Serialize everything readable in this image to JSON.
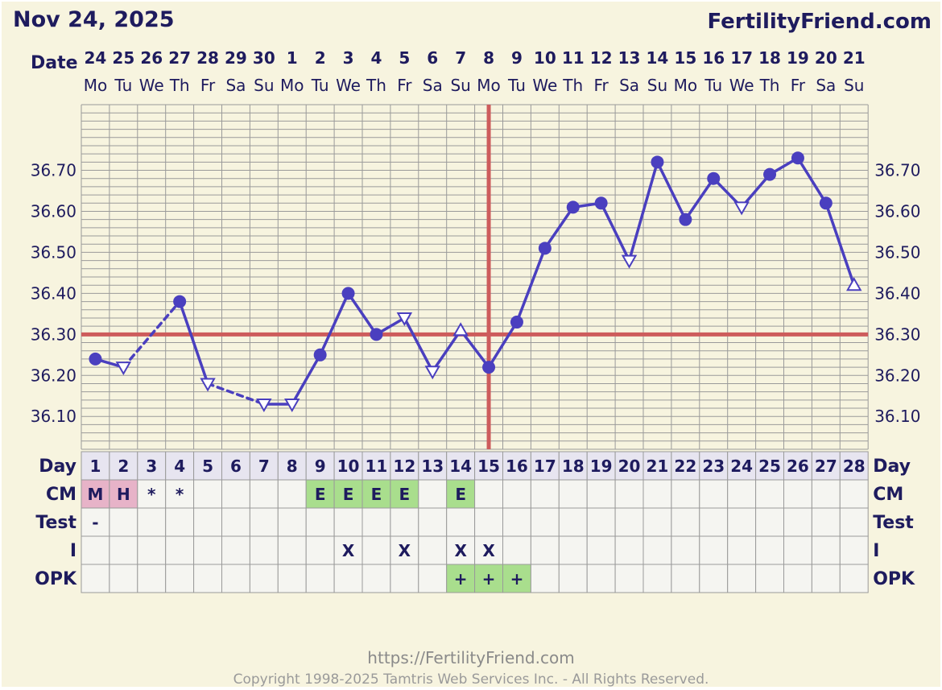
{
  "header": {
    "date": "Nov 24, 2025",
    "site": "FertilityFriend.com"
  },
  "labels": {
    "date": "Date",
    "day": "Day",
    "cm": "CM",
    "test": "Test",
    "intercourse": "I",
    "opk": "OPK"
  },
  "footer": {
    "url": "https://FertilityFriend.com",
    "copyright": "Copyright 1998-2025 Tamtris Web Services Inc. - All Rights Reserved."
  },
  "colors": {
    "background": "#f7f4df",
    "grid": "#9a9a9a",
    "temp_line": "#4a3fbf",
    "coverline": "#cd5c5c",
    "menses_cell": "#e7b3c8",
    "fertile_cell": "#a9de8d",
    "day_row": "#e7e5f0",
    "table_cell": "#f5f5f1",
    "text": "#1e1b5e"
  },
  "chart_data": {
    "type": "line",
    "title": "",
    "x_axis": "cycle day",
    "dates": [
      "24",
      "25",
      "26",
      "27",
      "28",
      "29",
      "30",
      "1",
      "2",
      "3",
      "4",
      "5",
      "6",
      "7",
      "8",
      "9",
      "10",
      "11",
      "12",
      "13",
      "14",
      "15",
      "16",
      "17",
      "18",
      "19",
      "20",
      "21"
    ],
    "weekdays": [
      "Mo",
      "Tu",
      "We",
      "Th",
      "Fr",
      "Sa",
      "Su",
      "Mo",
      "Tu",
      "We",
      "Th",
      "Fr",
      "Sa",
      "Su",
      "Mo",
      "Tu",
      "We",
      "Th",
      "Fr",
      "Sa",
      "Su",
      "Mo",
      "Tu",
      "We",
      "Th",
      "Fr",
      "Sa",
      "Su"
    ],
    "cycle_days": [
      1,
      2,
      3,
      4,
      5,
      6,
      7,
      8,
      9,
      10,
      11,
      12,
      13,
      14,
      15,
      16,
      17,
      18,
      19,
      20,
      21,
      22,
      23,
      24,
      25,
      26,
      27,
      28
    ],
    "y_ticks": [
      "36.10",
      "36.20",
      "36.30",
      "36.40",
      "36.50",
      "36.60",
      "36.70"
    ],
    "ylim": [
      36.02,
      36.86
    ],
    "temps": [
      36.24,
      36.22,
      null,
      36.38,
      36.18,
      null,
      36.13,
      36.13,
      36.25,
      36.4,
      36.3,
      36.34,
      36.21,
      36.31,
      36.22,
      36.33,
      36.51,
      36.61,
      36.62,
      36.48,
      36.72,
      36.58,
      36.68,
      36.61,
      36.69,
      36.73,
      36.62,
      36.42
    ],
    "markers": [
      "circle",
      "tri-down",
      "none",
      "circle",
      "tri-down",
      "none",
      "tri-down",
      "tri-down",
      "circle",
      "circle",
      "circle",
      "tri-down",
      "tri-down",
      "tri-up",
      "circle",
      "circle",
      "circle",
      "circle",
      "circle",
      "tri-down",
      "circle",
      "circle",
      "circle",
      "tri-down",
      "circle",
      "circle",
      "circle",
      "tri-up"
    ],
    "dashed_segments": [
      [
        2,
        4
      ],
      [
        5,
        7
      ]
    ],
    "coverline": 36.3,
    "ovulation_day": 15,
    "cm": [
      "M",
      "H",
      "*",
      "*",
      "",
      "",
      "",
      "",
      "E",
      "E",
      "E",
      "E",
      "",
      "E",
      "",
      "",
      "",
      "",
      "",
      "",
      "",
      "",
      "",
      "",
      "",
      "",
      "",
      ""
    ],
    "cm_kinds": [
      "menses",
      "menses",
      "dot",
      "dot",
      "",
      "",
      "",
      "",
      "fertile",
      "fertile",
      "fertile",
      "fertile",
      "",
      "fertile",
      "",
      "",
      "",
      "",
      "",
      "",
      "",
      "",
      "",
      "",
      "",
      "",
      "",
      ""
    ],
    "test": [
      "-",
      "",
      "",
      "",
      "",
      "",
      "",
      "",
      "",
      "",
      "",
      "",
      "",
      "",
      "",
      "",
      "",
      "",
      "",
      "",
      "",
      "",
      "",
      "",
      "",
      "",
      "",
      ""
    ],
    "intercourse": [
      "",
      "",
      "",
      "",
      "",
      "",
      "",
      "",
      "",
      "X",
      "",
      "X",
      "",
      "X",
      "X",
      "",
      "",
      "",
      "",
      "",
      "",
      "",
      "",
      "",
      "",
      "",
      "",
      ""
    ],
    "opk": [
      "",
      "",
      "",
      "",
      "",
      "",
      "",
      "",
      "",
      "",
      "",
      "",
      "",
      "+",
      "+",
      "+",
      "",
      "",
      "",
      "",
      "",
      "",
      "",
      "",
      "",
      "",
      "",
      ""
    ]
  }
}
